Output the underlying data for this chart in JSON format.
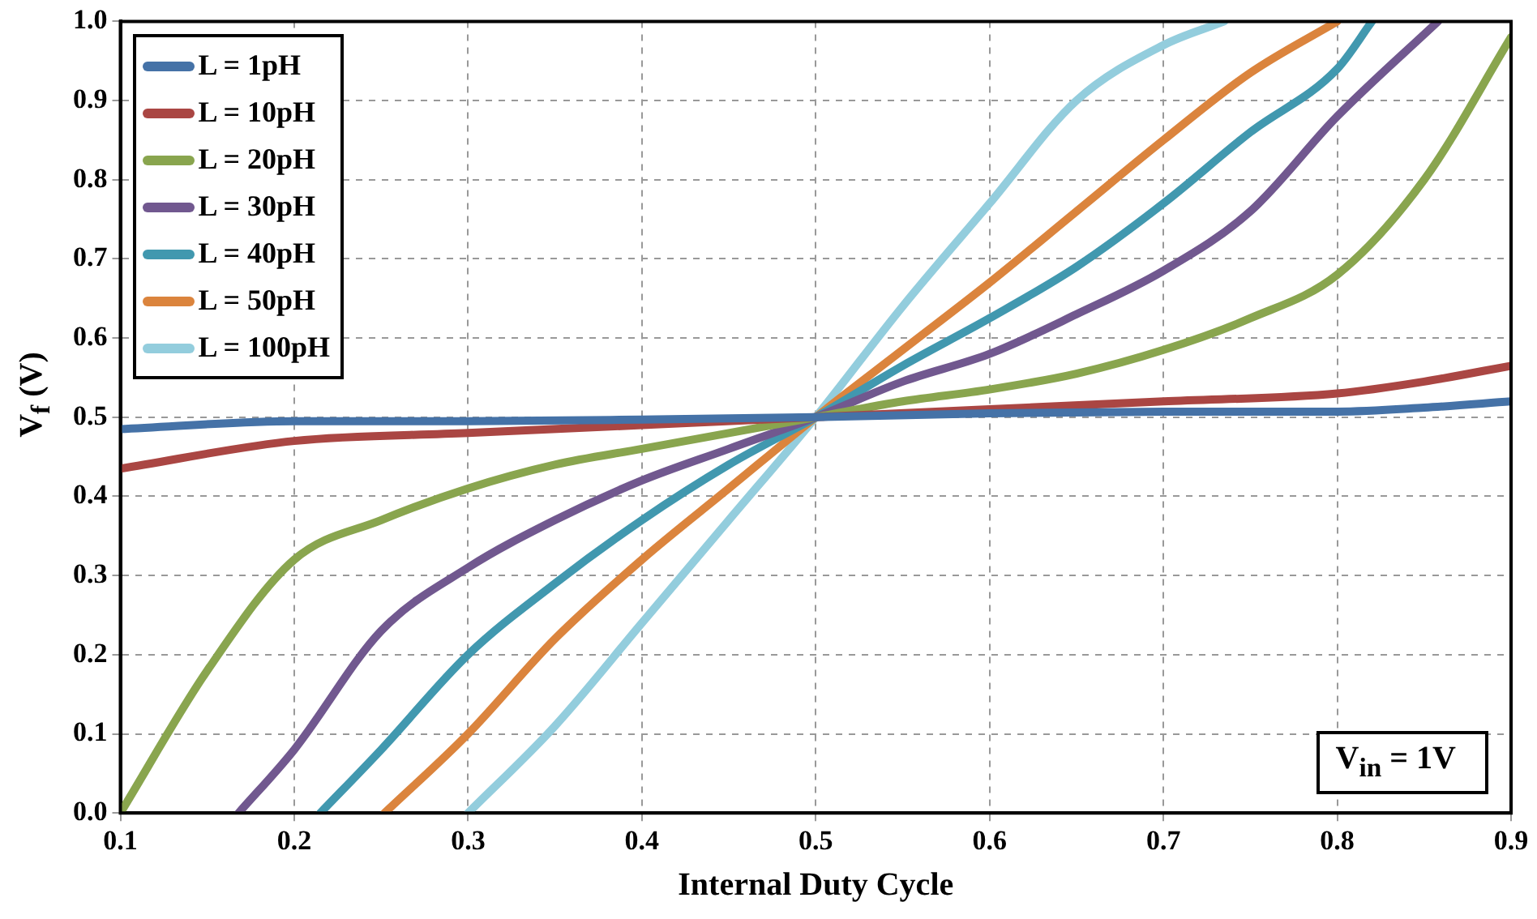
{
  "chart_data": {
    "type": "line",
    "xlabel": "Internal Duty Cycle",
    "ylabel": "V$_{f}$ (V)",
    "xlim": [
      0.1,
      0.9
    ],
    "xticks": [
      0.1,
      0.2,
      0.3,
      0.4,
      0.5,
      0.6,
      0.7,
      0.8,
      0.9
    ],
    "ylim": [
      0,
      1
    ],
    "yticks": [
      {
        "value": 0,
        "label": "0.0"
      },
      0.1,
      0.2,
      0.3,
      0.4,
      0.5,
      0.6,
      0.7,
      0.8,
      0.9,
      {
        "value": 1,
        "label": "1.0"
      }
    ],
    "grid": true,
    "legend": "top left",
    "annotations": [
      "V$_{in}$ = 1V"
    ],
    "series": [
      {
        "name": "L = 1pH",
        "color": "#4572a7",
        "x": [
          0.1,
          0.2,
          0.3,
          0.4,
          0.5,
          0.6,
          0.7,
          0.8,
          0.85,
          0.9
        ],
        "values": [
          0.485,
          0.495,
          0.495,
          0.497,
          0.5,
          0.505,
          0.507,
          0.507,
          0.512,
          0.52
        ]
      },
      {
        "name": "L = 10pH",
        "color": "#aa4643",
        "x": [
          0.1,
          0.2,
          0.3,
          0.4,
          0.5,
          0.6,
          0.7,
          0.8,
          0.85,
          0.9
        ],
        "values": [
          0.435,
          0.47,
          0.48,
          0.49,
          0.5,
          0.51,
          0.52,
          0.53,
          0.545,
          0.565
        ]
      },
      {
        "name": "L = 20pH",
        "color": "#89a54e",
        "x": [
          0.1,
          0.15,
          0.2,
          0.25,
          0.3,
          0.35,
          0.4,
          0.45,
          0.5,
          0.55,
          0.6,
          0.65,
          0.7,
          0.75,
          0.8,
          0.85,
          0.9
        ],
        "values": [
          0,
          0.18,
          0.32,
          0.37,
          0.41,
          0.44,
          0.46,
          0.48,
          0.5,
          0.52,
          0.535,
          0.555,
          0.585,
          0.625,
          0.68,
          0.8,
          0.98
        ]
      },
      {
        "name": "L = 30pH",
        "color": "#71588f",
        "x": [
          0.168,
          0.2,
          0.25,
          0.3,
          0.35,
          0.4,
          0.45,
          0.5,
          0.55,
          0.6,
          0.65,
          0.7,
          0.75,
          0.8,
          0.858
        ],
        "values": [
          0,
          0.08,
          0.23,
          0.31,
          0.37,
          0.42,
          0.46,
          0.5,
          0.545,
          0.58,
          0.63,
          0.685,
          0.76,
          0.88,
          1
        ]
      },
      {
        "name": "L = 40pH",
        "color": "#4198af",
        "x": [
          0.215,
          0.25,
          0.3,
          0.35,
          0.4,
          0.45,
          0.5,
          0.55,
          0.6,
          0.65,
          0.7,
          0.75,
          0.8,
          0.82
        ],
        "values": [
          0,
          0.08,
          0.2,
          0.29,
          0.37,
          0.44,
          0.5,
          0.565,
          0.625,
          0.69,
          0.77,
          0.86,
          0.94,
          1
        ]
      },
      {
        "name": "L = 50pH",
        "color": "#db843d",
        "x": [
          0.252,
          0.3,
          0.35,
          0.4,
          0.45,
          0.5,
          0.55,
          0.6,
          0.65,
          0.7,
          0.75,
          0.8
        ],
        "values": [
          0,
          0.1,
          0.22,
          0.32,
          0.41,
          0.5,
          0.585,
          0.67,
          0.76,
          0.85,
          0.935,
          1
        ]
      },
      {
        "name": "L = 100pH",
        "color": "#93cddd",
        "x": [
          0.3,
          0.35,
          0.4,
          0.45,
          0.5,
          0.55,
          0.6,
          0.65,
          0.7,
          0.735
        ],
        "values": [
          0,
          0.11,
          0.24,
          0.37,
          0.5,
          0.64,
          0.77,
          0.9,
          0.97,
          1
        ]
      }
    ]
  }
}
